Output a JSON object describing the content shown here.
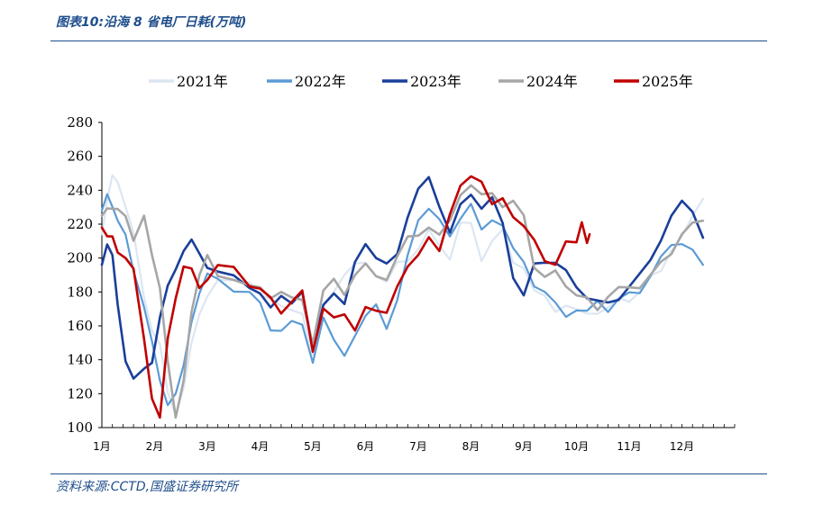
{
  "figure": {
    "title": "图表10:沿海 8 省电厂日耗(万吨)",
    "source": "资料来源:CCTD,国盛证券研究所"
  },
  "chart_data": {
    "type": "line",
    "title": "沿海 8 省电厂日耗(万吨)",
    "xlabel": "",
    "ylabel": "",
    "ylim": [
      100,
      280
    ],
    "yticks": [
      100,
      120,
      140,
      160,
      180,
      200,
      220,
      240,
      260,
      280
    ],
    "xticks": [
      "1月",
      "2月",
      "3月",
      "4月",
      "5月",
      "6月",
      "7月",
      "8月",
      "9月",
      "10月",
      "11月",
      "12月"
    ],
    "x_unit": "month (1.0 = start of January)",
    "grid": false,
    "legend_position": "top",
    "series": [
      {
        "name": "2021年",
        "color": "#dce6f2",
        "width": 2.2,
        "x": [
          1.0,
          1.1,
          1.2,
          1.3,
          1.45,
          1.6,
          1.8,
          1.95,
          2.1,
          2.25,
          2.4,
          2.55,
          2.7,
          2.85,
          3.0,
          3.2,
          3.5,
          3.8,
          4.0,
          4.2,
          4.4,
          4.6,
          4.8,
          5.0,
          5.2,
          5.4,
          5.6,
          5.8,
          6.0,
          6.2,
          6.4,
          6.6,
          6.8,
          7.0,
          7.2,
          7.4,
          7.6,
          7.8,
          8.0,
          8.2,
          8.4,
          8.6,
          8.8,
          9.0,
          9.2,
          9.4,
          9.6,
          9.8,
          10.0,
          10.2,
          10.4,
          10.6,
          10.8,
          11.0,
          11.2,
          11.4,
          11.6,
          11.8,
          12.0,
          12.2,
          12.4
        ],
        "y": [
          214,
          235,
          248,
          242,
          232,
          215,
          175,
          160,
          150,
          120,
          105,
          125,
          150,
          165,
          180,
          188,
          186,
          183,
          180,
          176,
          170,
          172,
          168,
          142,
          170,
          182,
          190,
          195,
          200,
          190,
          185,
          195,
          200,
          205,
          215,
          210,
          200,
          220,
          218,
          200,
          210,
          215,
          200,
          195,
          180,
          175,
          170,
          172,
          168,
          170,
          168,
          170,
          174,
          176,
          180,
          188,
          195,
          205,
          212,
          222,
          235
        ]
      },
      {
        "name": "2022年",
        "color": "#5b9bd5",
        "width": 2.2,
        "x": [
          1.0,
          1.1,
          1.2,
          1.3,
          1.45,
          1.6,
          1.8,
          1.95,
          2.1,
          2.25,
          2.4,
          2.55,
          2.7,
          2.85,
          3.0,
          3.2,
          3.5,
          3.8,
          4.0,
          4.2,
          4.4,
          4.6,
          4.8,
          5.0,
          5.2,
          5.4,
          5.6,
          5.8,
          6.0,
          6.2,
          6.4,
          6.6,
          6.8,
          7.0,
          7.2,
          7.4,
          7.6,
          7.8,
          8.0,
          8.2,
          8.4,
          8.6,
          8.8,
          9.0,
          9.2,
          9.4,
          9.6,
          9.8,
          10.0,
          10.2,
          10.4,
          10.6,
          10.8,
          11.0,
          11.2,
          11.4,
          11.6,
          11.8,
          12.0,
          12.2,
          12.4
        ],
        "y": [
          228,
          235,
          232,
          222,
          212,
          195,
          172,
          150,
          125,
          115,
          120,
          135,
          165,
          180,
          190,
          185,
          182,
          180,
          172,
          160,
          158,
          162,
          158,
          140,
          165,
          150,
          145,
          155,
          165,
          170,
          160,
          175,
          200,
          225,
          230,
          222,
          210,
          225,
          232,
          215,
          225,
          220,
          205,
          195,
          185,
          180,
          172,
          168,
          170,
          168,
          172,
          170,
          176,
          178,
          182,
          190,
          200,
          205,
          210,
          205,
          196
        ]
      },
      {
        "name": "2023年",
        "color": "#1a3f9a",
        "width": 2.6,
        "x": [
          1.0,
          1.1,
          1.2,
          1.3,
          1.45,
          1.6,
          1.8,
          1.95,
          2.1,
          2.25,
          2.4,
          2.55,
          2.7,
          2.85,
          3.0,
          3.2,
          3.5,
          3.8,
          4.0,
          4.2,
          4.4,
          4.6,
          4.8,
          5.0,
          5.2,
          5.4,
          5.6,
          5.8,
          6.0,
          6.2,
          6.4,
          6.6,
          6.8,
          7.0,
          7.2,
          7.4,
          7.6,
          7.8,
          8.0,
          8.2,
          8.4,
          8.6,
          8.8,
          9.0,
          9.2,
          9.4,
          9.6,
          9.8,
          10.0,
          10.2,
          10.4,
          10.6,
          10.8,
          11.0,
          11.2,
          11.4,
          11.6,
          11.8,
          12.0,
          12.2,
          12.4
        ],
        "y": [
          196,
          208,
          200,
          175,
          140,
          128,
          132,
          140,
          165,
          182,
          196,
          205,
          210,
          200,
          196,
          192,
          188,
          185,
          180,
          170,
          175,
          175,
          180,
          145,
          175,
          180,
          172,
          195,
          210,
          200,
          195,
          205,
          225,
          240,
          245,
          232,
          215,
          230,
          240,
          230,
          235,
          218,
          190,
          178,
          195,
          200,
          198,
          192,
          180,
          178,
          175,
          172,
          178,
          184,
          190,
          196,
          212,
          225,
          232,
          230,
          212
        ]
      },
      {
        "name": "2024年",
        "color": "#a6a6a6",
        "width": 2.6,
        "x": [
          1.0,
          1.1,
          1.2,
          1.3,
          1.45,
          1.6,
          1.8,
          1.95,
          2.1,
          2.25,
          2.4,
          2.55,
          2.7,
          2.85,
          3.0,
          3.2,
          3.5,
          3.8,
          4.0,
          4.2,
          4.4,
          4.6,
          4.8,
          5.0,
          5.2,
          5.4,
          5.6,
          5.8,
          6.0,
          6.2,
          6.4,
          6.6,
          6.8,
          7.0,
          7.2,
          7.4,
          7.6,
          7.8,
          8.0,
          8.2,
          8.4,
          8.6,
          8.8,
          9.0,
          9.2,
          9.4,
          9.6,
          9.8,
          10.0,
          10.2,
          10.4,
          10.6,
          10.8,
          11.0,
          11.2,
          11.4,
          11.6,
          11.8,
          12.0,
          12.2,
          12.4
        ],
        "y": [
          225,
          232,
          230,
          228,
          222,
          212,
          225,
          200,
          185,
          140,
          105,
          125,
          170,
          190,
          200,
          192,
          188,
          183,
          180,
          178,
          180,
          175,
          178,
          150,
          180,
          185,
          180,
          190,
          195,
          192,
          188,
          200,
          210,
          215,
          218,
          212,
          225,
          238,
          242,
          235,
          240,
          230,
          232,
          228,
          195,
          188,
          190,
          185,
          178,
          175,
          172,
          178,
          182,
          180,
          184,
          190,
          196,
          205,
          215,
          220,
          222
        ]
      },
      {
        "name": "2025年",
        "color": "#c00000",
        "width": 2.6,
        "x": [
          1.0,
          1.1,
          1.2,
          1.3,
          1.45,
          1.6,
          1.8,
          1.95,
          2.1,
          2.25,
          2.4,
          2.55,
          2.7,
          2.85,
          3.0,
          3.2,
          3.5,
          3.8,
          4.0,
          4.2,
          4.4,
          4.6,
          4.8,
          5.0,
          5.2,
          5.4,
          5.6,
          5.8,
          6.0,
          6.2,
          6.4,
          6.6,
          6.8,
          7.0,
          7.2,
          7.4,
          7.6,
          7.8,
          8.0,
          8.2,
          8.4,
          8.6,
          8.8,
          9.0,
          9.2,
          9.4,
          9.6,
          9.8,
          10.0,
          10.1,
          10.2,
          10.25
        ],
        "y": [
          218,
          212,
          210,
          205,
          200,
          192,
          155,
          118,
          105,
          150,
          178,
          195,
          192,
          185,
          188,
          195,
          192,
          185,
          182,
          175,
          170,
          175,
          180,
          142,
          172,
          165,
          165,
          160,
          172,
          168,
          165,
          185,
          195,
          200,
          215,
          205,
          225,
          240,
          250,
          245,
          230,
          238,
          225,
          218,
          208,
          200,
          196,
          208,
          212,
          222,
          208,
          214
        ]
      }
    ]
  }
}
